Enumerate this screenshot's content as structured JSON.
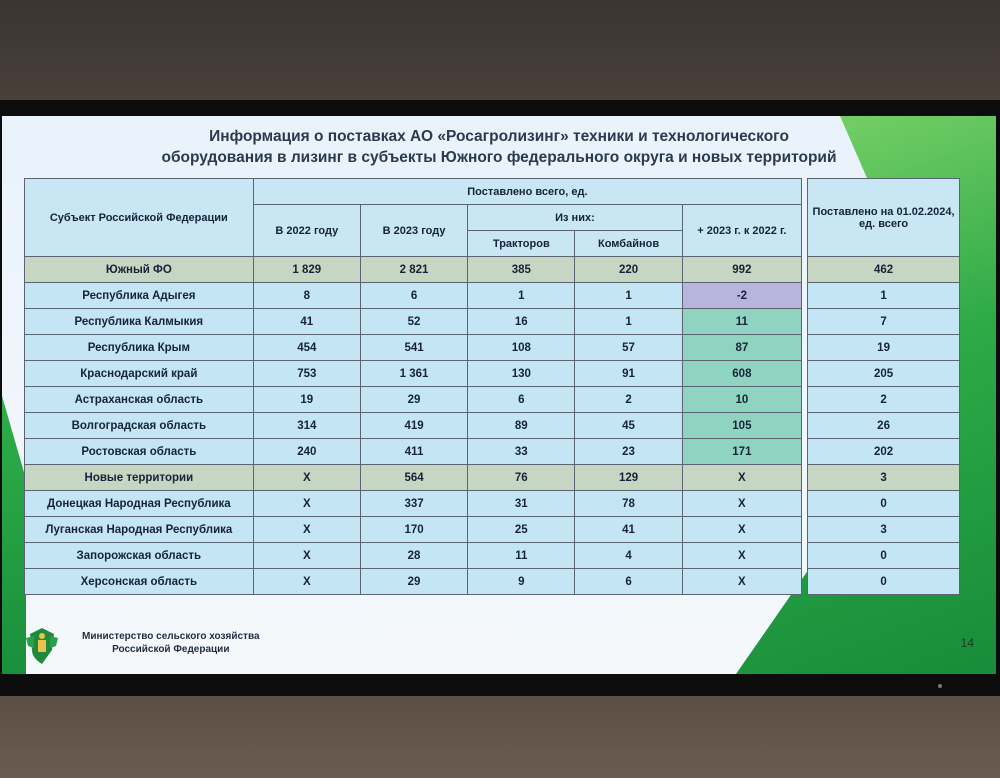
{
  "title_line1": "Информация о поставках АО «Росагролизинг» техники и технологического",
  "title_line2": "оборудования в лизинг в субъекты Южного федерального округа и новых территорий",
  "table": {
    "header_subject": "Субъект Российской Федерации",
    "header_delivered": "Поставлено всего, ед.",
    "header_2022": "В 2022 году",
    "header_2023": "В 2023 году",
    "header_of_them": "Из них:",
    "header_tractors": "Тракторов",
    "header_combines": "Комбайнов",
    "header_diff": "+ 2023 г. к 2022 г.",
    "header_delivered_2024": "Поставлено на 01.02.2024, ед. всего",
    "rows": [
      {
        "name": "Южный ФО",
        "y2022": "1 829",
        "y2023": "2 821",
        "tractors": "385",
        "combines": "220",
        "diff": "992",
        "y2024": "462"
      },
      {
        "name": "Республика Адыгея",
        "y2022": "8",
        "y2023": "6",
        "tractors": "1",
        "combines": "1",
        "diff": "-2",
        "y2024": "1"
      },
      {
        "name": "Республика Калмыкия",
        "y2022": "41",
        "y2023": "52",
        "tractors": "16",
        "combines": "1",
        "diff": "11",
        "y2024": "7"
      },
      {
        "name": "Республика Крым",
        "y2022": "454",
        "y2023": "541",
        "tractors": "108",
        "combines": "57",
        "diff": "87",
        "y2024": "19"
      },
      {
        "name": "Краснодарский край",
        "y2022": "753",
        "y2023": "1 361",
        "tractors": "130",
        "combines": "91",
        "diff": "608",
        "y2024": "205"
      },
      {
        "name": "Астраханская область",
        "y2022": "19",
        "y2023": "29",
        "tractors": "6",
        "combines": "2",
        "diff": "10",
        "y2024": "2"
      },
      {
        "name": "Волгоградская область",
        "y2022": "314",
        "y2023": "419",
        "tractors": "89",
        "combines": "45",
        "diff": "105",
        "y2024": "26"
      },
      {
        "name": "Ростовская область",
        "y2022": "240",
        "y2023": "411",
        "tractors": "33",
        "combines": "23",
        "diff": "171",
        "y2024": "202"
      },
      {
        "name": "Новые территории",
        "y2022": "X",
        "y2023": "564",
        "tractors": "76",
        "combines": "129",
        "diff": "X",
        "y2024": "3"
      },
      {
        "name": "Донецкая Народная Республика",
        "y2022": "X",
        "y2023": "337",
        "tractors": "31",
        "combines": "78",
        "diff": "X",
        "y2024": "0"
      },
      {
        "name": "Луганская Народная Республика",
        "y2022": "X",
        "y2023": "170",
        "tractors": "25",
        "combines": "41",
        "diff": "X",
        "y2024": "3"
      },
      {
        "name": "Запорожская область",
        "y2022": "X",
        "y2023": "28",
        "tractors": "11",
        "combines": "4",
        "diff": "X",
        "y2024": "0"
      },
      {
        "name": "Херсонская область",
        "y2022": "X",
        "y2023": "29",
        "tractors": "9",
        "combines": "6",
        "diff": "X",
        "y2024": "0"
      }
    ]
  },
  "footer_line1": "Министерство сельского хозяйства",
  "footer_line2": "Российской Федерации",
  "page_number": "14",
  "colors": {
    "negative_cell": "#b9b4dd",
    "positive_cell": "#8fd4c0",
    "total_row": "#c6d6c2",
    "row": "#c4e5f3"
  }
}
